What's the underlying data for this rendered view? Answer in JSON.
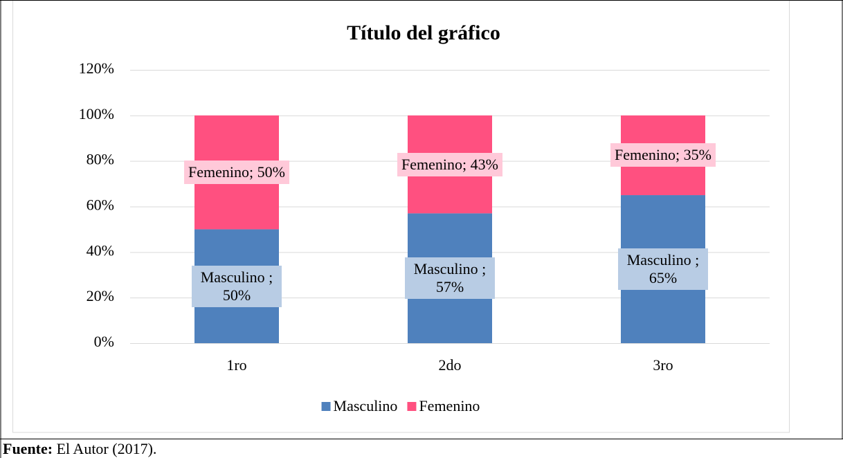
{
  "chart_data": {
    "type": "bar",
    "stacked": true,
    "title": "Título del gráfico",
    "categories": [
      "1ro",
      "2do",
      "3ro"
    ],
    "series": [
      {
        "name": "Masculino",
        "color": "#4f81bd",
        "label_color": "#b8cce4",
        "values": [
          50,
          57,
          65
        ],
        "value_labels": [
          "Masculino ; 50%",
          "Masculino ; 57%",
          "Masculino ; 65%"
        ]
      },
      {
        "name": "Femenino",
        "color": "#ff5080",
        "label_color": "#ffc9d9",
        "values": [
          50,
          43,
          35
        ],
        "value_labels": [
          "Femenino; 50%",
          "Femenino; 43%",
          "Femenino; 35%"
        ]
      }
    ],
    "ylim": [
      0,
      120
    ],
    "yticks": [
      {
        "value": 0,
        "label": "0%"
      },
      {
        "value": 20,
        "label": "20%"
      },
      {
        "value": 40,
        "label": "40%"
      },
      {
        "value": 60,
        "label": "60%"
      },
      {
        "value": 80,
        "label": "80%"
      },
      {
        "value": 100,
        "label": "100%"
      },
      {
        "value": 120,
        "label": "120%"
      }
    ],
    "grid": true,
    "legend": "bottom"
  },
  "source": {
    "label": "Fuente:",
    "text": "El Autor (2017)."
  }
}
